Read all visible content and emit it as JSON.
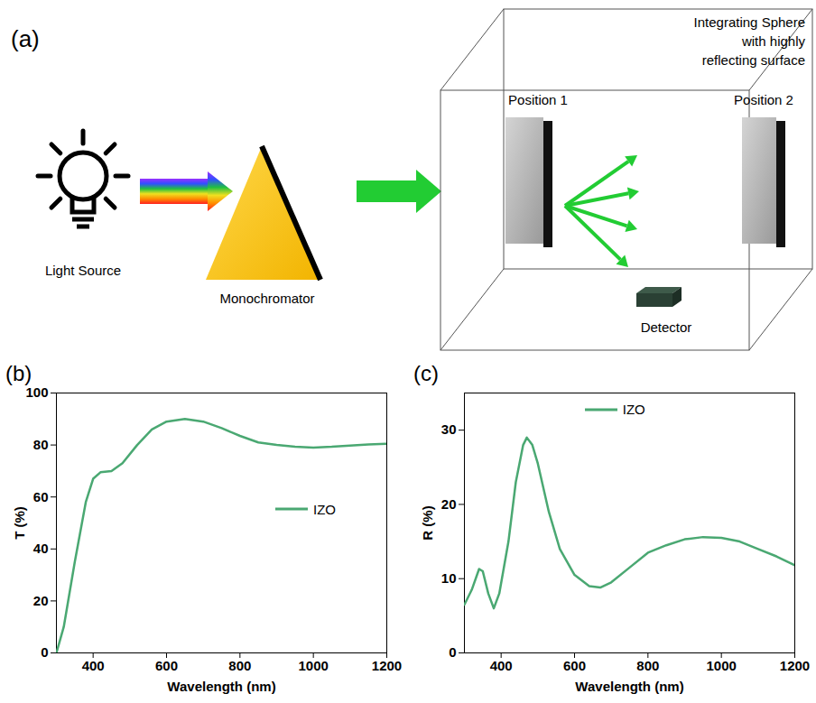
{
  "diagram": {
    "label": "(a)",
    "light_source": "Light Source",
    "monochromator": "Monochromator",
    "sphere_label": [
      "Integrating Sphere",
      "with highly",
      "reflecting surface"
    ],
    "positions": [
      "Position 1",
      "Position 2"
    ],
    "detector": "Detector"
  },
  "chart_data": [
    {
      "label": "(b)",
      "type": "line",
      "x_label": "Wavelength (nm)",
      "y_label": "T (%)",
      "xlim": [
        300,
        1200
      ],
      "xticks": [
        400,
        600,
        800,
        1000,
        1200
      ],
      "ylim": [
        0,
        100
      ],
      "yticks": [
        0,
        20,
        40,
        60,
        80,
        100
      ],
      "legend": "right",
      "x": [
        300,
        320,
        350,
        380,
        400,
        420,
        450,
        480,
        520,
        560,
        600,
        650,
        700,
        750,
        800,
        850,
        900,
        950,
        1000,
        1050,
        1100,
        1150,
        1200
      ],
      "series": [
        {
          "name": "IZO",
          "color": "#4aa872",
          "values": [
            0,
            10,
            35,
            58,
            67,
            69.5,
            70,
            73,
            80,
            86,
            89,
            90,
            89,
            86.5,
            83.5,
            81,
            80,
            79.3,
            79,
            79.3,
            79.8,
            80.2,
            80.5
          ]
        }
      ]
    },
    {
      "label": "(c)",
      "type": "line",
      "x_label": "Wavelength (nm)",
      "y_label": "R (%)",
      "xlim": [
        300,
        1200
      ],
      "xticks": [
        400,
        600,
        800,
        1000,
        1200
      ],
      "ylim": [
        0,
        35
      ],
      "yticks": [
        0,
        10,
        20,
        30
      ],
      "legend": "top",
      "x": [
        300,
        320,
        340,
        350,
        365,
        380,
        395,
        420,
        440,
        460,
        470,
        485,
        500,
        530,
        560,
        600,
        640,
        670,
        700,
        750,
        800,
        850,
        900,
        950,
        1000,
        1050,
        1100,
        1150,
        1200
      ],
      "series": [
        {
          "name": "IZO",
          "color": "#4aa872",
          "values": [
            6.5,
            8.5,
            11.3,
            11,
            8,
            6,
            8,
            15,
            23,
            28,
            29,
            28,
            25.5,
            19,
            14,
            10.5,
            9,
            8.8,
            9.5,
            11.5,
            13.5,
            14.5,
            15.3,
            15.6,
            15.5,
            15,
            14,
            13,
            11.8
          ]
        }
      ]
    }
  ]
}
